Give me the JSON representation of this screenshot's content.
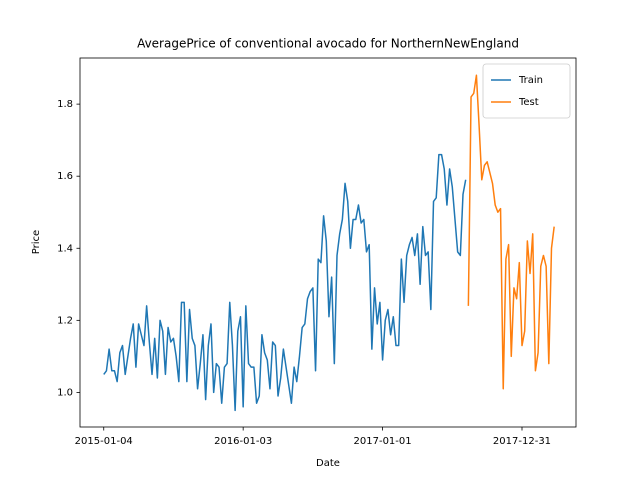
{
  "chart_data": {
    "type": "line",
    "title": "AveragePrice of conventional avocado for NorthernNewEngland",
    "xlabel": "Date",
    "ylabel": "Price",
    "x": [
      "2015-01-04",
      "2015-01-11",
      "2015-01-18",
      "2015-01-25",
      "2015-02-01",
      "2015-02-08",
      "2015-02-15",
      "2015-02-22",
      "2015-03-01",
      "2015-03-08",
      "2015-03-15",
      "2015-03-22",
      "2015-03-29",
      "2015-04-05",
      "2015-04-12",
      "2015-04-19",
      "2015-04-26",
      "2015-05-03",
      "2015-05-10",
      "2015-05-17",
      "2015-05-24",
      "2015-05-31",
      "2015-06-07",
      "2015-06-14",
      "2015-06-21",
      "2015-06-28",
      "2015-07-05",
      "2015-07-12",
      "2015-07-19",
      "2015-07-26",
      "2015-08-02",
      "2015-08-09",
      "2015-08-16",
      "2015-08-23",
      "2015-08-30",
      "2015-09-06",
      "2015-09-13",
      "2015-09-20",
      "2015-09-27",
      "2015-10-04",
      "2015-10-11",
      "2015-10-18",
      "2015-10-25",
      "2015-11-01",
      "2015-11-08",
      "2015-11-15",
      "2015-11-22",
      "2015-11-29",
      "2015-12-06",
      "2015-12-13",
      "2015-12-20",
      "2015-12-27",
      "2016-01-03",
      "2016-01-10",
      "2016-01-17",
      "2016-01-24",
      "2016-01-31",
      "2016-02-07",
      "2016-02-14",
      "2016-02-21",
      "2016-02-28",
      "2016-03-06",
      "2016-03-13",
      "2016-03-20",
      "2016-03-27",
      "2016-04-03",
      "2016-04-10",
      "2016-04-17",
      "2016-04-24",
      "2016-05-01",
      "2016-05-08",
      "2016-05-15",
      "2016-05-22",
      "2016-05-29",
      "2016-06-05",
      "2016-06-12",
      "2016-06-19",
      "2016-06-26",
      "2016-07-03",
      "2016-07-10",
      "2016-07-17",
      "2016-07-24",
      "2016-07-31",
      "2016-08-07",
      "2016-08-14",
      "2016-08-21",
      "2016-08-28",
      "2016-09-04",
      "2016-09-11",
      "2016-09-18",
      "2016-09-25",
      "2016-10-02",
      "2016-10-09",
      "2016-10-16",
      "2016-10-23",
      "2016-10-30",
      "2016-11-06",
      "2016-11-13",
      "2016-11-20",
      "2016-11-27",
      "2016-12-04",
      "2016-12-11",
      "2016-12-18",
      "2016-12-25",
      "2017-01-01",
      "2017-01-08",
      "2017-01-15",
      "2017-01-22",
      "2017-01-29",
      "2017-02-05",
      "2017-02-12",
      "2017-02-19",
      "2017-02-26",
      "2017-03-05",
      "2017-03-12",
      "2017-03-19",
      "2017-03-26",
      "2017-04-02",
      "2017-04-09",
      "2017-04-16",
      "2017-04-23",
      "2017-04-30",
      "2017-05-07",
      "2017-05-14",
      "2017-05-21",
      "2017-05-28",
      "2017-06-04",
      "2017-06-11",
      "2017-06-18",
      "2017-06-25",
      "2017-07-02",
      "2017-07-09",
      "2017-07-16",
      "2017-07-23",
      "2017-07-30",
      "2017-08-06",
      "2017-08-13",
      "2017-08-20",
      "2017-08-27",
      "2017-09-03",
      "2017-09-10",
      "2017-09-17",
      "2017-09-24",
      "2017-10-01",
      "2017-10-08",
      "2017-10-15",
      "2017-10-22",
      "2017-10-29",
      "2017-11-05",
      "2017-11-12",
      "2017-11-19",
      "2017-11-26",
      "2017-12-03",
      "2017-12-10",
      "2017-12-17",
      "2017-12-24",
      "2017-12-31",
      "2018-01-07",
      "2018-01-14",
      "2018-01-21",
      "2018-01-28",
      "2018-02-04",
      "2018-02-11",
      "2018-02-18",
      "2018-02-25",
      "2018-03-04",
      "2018-03-11",
      "2018-03-18",
      "2018-03-25"
    ],
    "series": [
      {
        "name": "Train",
        "color": "#1f77b4",
        "values": [
          1.05,
          1.06,
          1.12,
          1.06,
          1.06,
          1.03,
          1.11,
          1.13,
          1.05,
          1.1,
          1.15,
          1.19,
          1.07,
          1.19,
          1.16,
          1.13,
          1.24,
          1.14,
          1.05,
          1.15,
          1.04,
          1.2,
          1.17,
          1.05,
          1.18,
          1.14,
          1.15,
          1.1,
          1.03,
          1.25,
          1.25,
          1.03,
          1.23,
          1.15,
          1.13,
          1.01,
          1.08,
          1.16,
          0.98,
          1.13,
          1.19,
          1.0,
          1.08,
          1.07,
          0.97,
          1.07,
          1.08,
          1.25,
          1.13,
          0.95,
          1.17,
          1.21,
          0.96,
          1.24,
          1.08,
          1.07,
          1.07,
          0.97,
          0.99,
          1.16,
          1.11,
          1.09,
          1.01,
          1.14,
          1.13,
          0.99,
          1.04,
          1.12,
          1.07,
          1.02,
          0.97,
          1.07,
          1.03,
          1.1,
          1.18,
          1.19,
          1.26,
          1.28,
          1.29,
          1.06,
          1.37,
          1.36,
          1.49,
          1.42,
          1.21,
          1.32,
          1.08,
          1.38,
          1.44,
          1.48,
          1.58,
          1.53,
          1.4,
          1.48,
          1.48,
          1.52,
          1.47,
          1.48,
          1.39,
          1.41,
          1.12,
          1.29,
          1.19,
          1.25,
          1.09,
          1.2,
          1.23,
          1.16,
          1.21,
          1.13,
          1.13,
          1.37,
          1.25,
          1.38,
          1.41,
          1.43,
          1.38,
          1.44,
          1.3,
          1.46,
          1.38,
          1.39,
          1.23,
          1.53,
          1.54,
          1.66,
          1.66,
          1.62,
          1.52,
          1.62,
          1.57,
          1.48,
          1.39,
          1.38,
          1.55,
          1.59,
          null,
          null,
          null,
          null,
          null,
          null,
          null,
          null,
          null,
          null,
          null,
          null,
          null,
          null,
          null,
          null,
          null,
          null,
          null,
          null,
          null,
          null,
          null,
          null,
          null,
          null,
          null,
          null,
          null,
          null,
          null,
          null,
          null
        ]
      },
      {
        "name": "Test",
        "color": "#ff7f0e",
        "values": [
          null,
          null,
          null,
          null,
          null,
          null,
          null,
          null,
          null,
          null,
          null,
          null,
          null,
          null,
          null,
          null,
          null,
          null,
          null,
          null,
          null,
          null,
          null,
          null,
          null,
          null,
          null,
          null,
          null,
          null,
          null,
          null,
          null,
          null,
          null,
          null,
          null,
          null,
          null,
          null,
          null,
          null,
          null,
          null,
          null,
          null,
          null,
          null,
          null,
          null,
          null,
          null,
          null,
          null,
          null,
          null,
          null,
          null,
          null,
          null,
          null,
          null,
          null,
          null,
          null,
          null,
          null,
          null,
          null,
          null,
          null,
          null,
          null,
          null,
          null,
          null,
          null,
          null,
          null,
          null,
          null,
          null,
          null,
          null,
          null,
          null,
          null,
          null,
          null,
          null,
          null,
          null,
          null,
          null,
          null,
          null,
          null,
          null,
          null,
          null,
          null,
          null,
          null,
          null,
          null,
          null,
          null,
          null,
          null,
          null,
          null,
          null,
          null,
          null,
          null,
          null,
          null,
          null,
          null,
          null,
          null,
          null,
          null,
          null,
          null,
          null,
          null,
          null,
          null,
          null,
          null,
          null,
          null,
          null,
          null,
          null,
          1.24,
          1.82,
          1.83,
          1.88,
          1.74,
          1.59,
          1.63,
          1.64,
          1.61,
          1.58,
          1.52,
          1.5,
          1.51,
          1.01,
          1.37,
          1.41,
          1.1,
          1.29,
          1.26,
          1.36,
          1.13,
          1.17,
          1.42,
          1.33,
          1.44,
          1.06,
          1.11,
          1.35,
          1.38,
          1.35,
          1.08,
          1.4,
          1.46
        ]
      }
    ],
    "xlim": [
      "2014-11-03",
      "2018-05-21"
    ],
    "xticks": [
      "2015-01-04",
      "2016-01-03",
      "2017-01-01",
      "2017-12-31"
    ],
    "ylim": [
      0.904,
      1.928
    ],
    "yticks": [
      {
        "value": 1,
        "label": "1.0"
      },
      1.2,
      1.4,
      1.6,
      1.8
    ],
    "legend": "upper right"
  }
}
